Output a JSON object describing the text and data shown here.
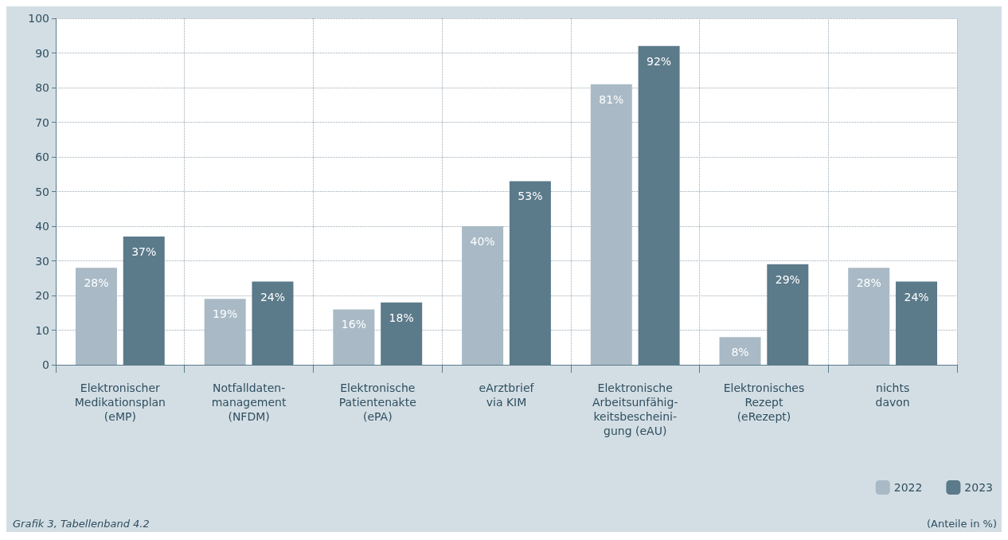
{
  "chart_data": {
    "type": "bar",
    "categories": [
      "Elektronischer\nMedikationsplan\n(eMP)",
      "Notfalldaten-\nmanagement\n(NFDM)",
      "Elektronische\nPatientenakte\n(ePA)",
      "eArztbrief\nvia KIM",
      "Elektronische\nArbeitsunfähig-\nkeitsbescheini-\ngung (eAU)",
      "Elektronisches\nRezept\n(eRezept)",
      "nichts\ndavon"
    ],
    "series": [
      {
        "name": "2022",
        "color": "#a9bac6",
        "values": [
          28,
          19,
          16,
          40,
          81,
          8,
          28
        ],
        "value_labels": [
          "28%",
          "19%",
          "16%",
          "40%",
          "81%",
          "8%",
          "28%"
        ]
      },
      {
        "name": "2023",
        "color": "#5b7a8a",
        "values": [
          37,
          24,
          18,
          53,
          92,
          29,
          24
        ],
        "value_labels": [
          "37%",
          "24%",
          "18%",
          "53%",
          "92%",
          "29%",
          "24%"
        ]
      }
    ],
    "ylim": [
      0,
      100
    ],
    "yticks": [
      0,
      10,
      20,
      30,
      40,
      50,
      60,
      70,
      80,
      90,
      100
    ],
    "grid": true,
    "legend": "bottom right",
    "annotations": [
      "Grafik 3, Tabellenband 4.2",
      "(Anteile in %)"
    ]
  }
}
